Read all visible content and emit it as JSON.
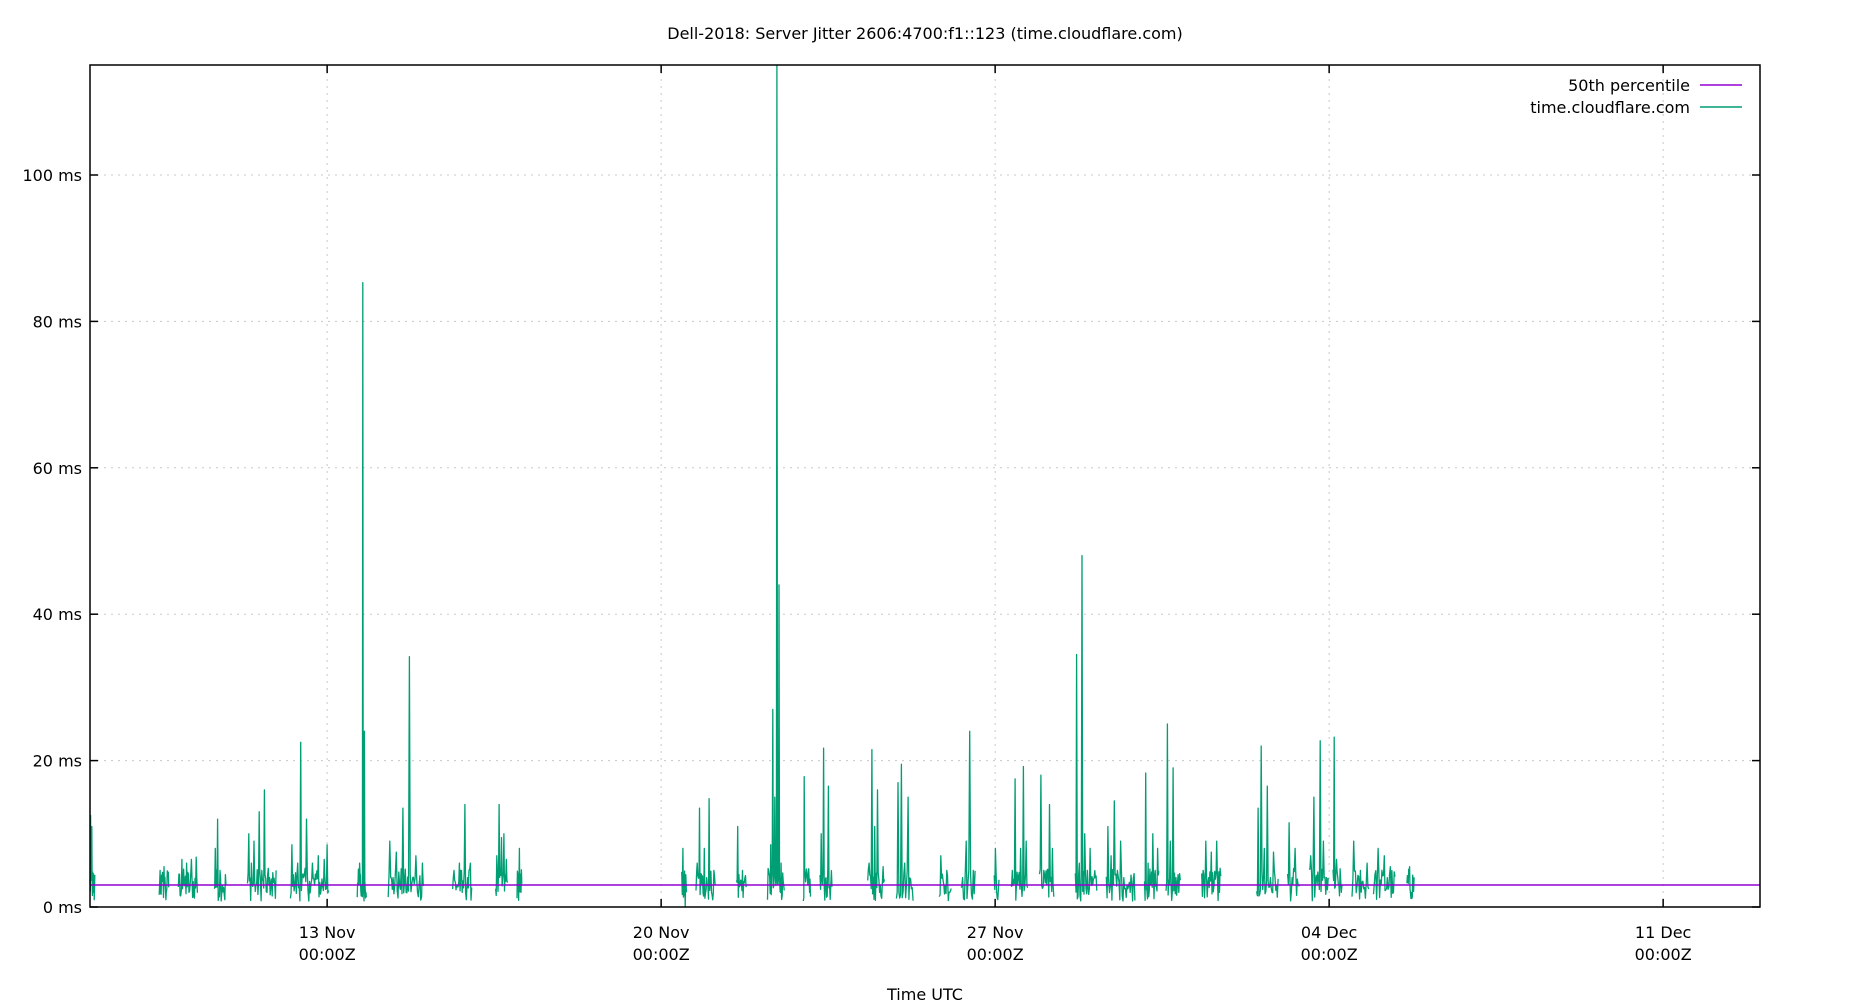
{
  "chart_data": {
    "type": "line",
    "title": "Dell-2018: Server Jitter 2606:4700:f1::123 (time.cloudflare.com)",
    "xlabel": "Time UTC",
    "ylabel": "",
    "ylim": [
      0,
      115
    ],
    "y_ticks": [
      {
        "value": 0,
        "label": "0 ms"
      },
      {
        "value": 20,
        "label": "20 ms"
      },
      {
        "value": 40,
        "label": "40 ms"
      },
      {
        "value": 60,
        "label": "60 ms"
      },
      {
        "value": 80,
        "label": "80 ms"
      },
      {
        "value": 100,
        "label": "100 ms"
      }
    ],
    "x_range_days": [
      0,
      29.7
    ],
    "x_origin": "08 Nov 00:00Z (approx.)",
    "x_ticks": [
      {
        "day": 4.97,
        "label_line1": "13 Nov",
        "label_line2": "00:00Z"
      },
      {
        "day": 11.97,
        "label_line1": "20 Nov",
        "label_line2": "00:00Z"
      },
      {
        "day": 18.97,
        "label_line1": "27 Nov",
        "label_line2": "00:00Z"
      },
      {
        "day": 25.97,
        "label_line1": "04 Dec",
        "label_line2": "00:00Z"
      },
      {
        "day": 32.97,
        "label_line1": "11 Dec",
        "label_line2": "00:00Z"
      }
    ],
    "grid": true,
    "legend_position": "top-right",
    "legend": [
      {
        "label": "50th percentile",
        "color": "#9400D3"
      },
      {
        "label": "time.cloudflare.com",
        "color": "#009E73"
      }
    ],
    "series": [
      {
        "name": "50th percentile",
        "color": "#9400D3",
        "constant_value_ms": 3.0
      },
      {
        "name": "time.cloudflare.com",
        "color": "#009E73",
        "description": "Jitter samples in bursts separated by gaps; baseline ~1-6 ms with spikes",
        "bursts": [
          {
            "start_day": 0.0,
            "end_day": 0.1,
            "peaks": [
              12.5,
              11.0,
              2.0,
              1.0
            ]
          },
          {
            "start_day": 1.45,
            "end_day": 1.65,
            "peaks": [
              5.0,
              3.5,
              5.5,
              1.0,
              4.8
            ]
          },
          {
            "start_day": 1.85,
            "end_day": 2.25,
            "peaks": [
              4.5,
              6.5,
              3.0,
              6.0,
              2.0,
              6.5,
              1.5,
              6.8
            ]
          },
          {
            "start_day": 2.6,
            "end_day": 2.85,
            "peaks": [
              8.0,
              12.0,
              5.0,
              3.0,
              1.0
            ]
          },
          {
            "start_day": 3.3,
            "end_day": 3.9,
            "peaks": [
              10.0,
              6.0,
              9.0,
              3.0,
              13.0,
              5.0,
              16.0,
              2.0,
              4.0,
              1.5,
              3.0
            ]
          },
          {
            "start_day": 4.2,
            "end_day": 5.0,
            "peaks": [
              8.5,
              3.0,
              6.0,
              22.5,
              4.0,
              12.0,
              3.5,
              6.0,
              4.5,
              7.0,
              2.5,
              6.5,
              8.5
            ]
          },
          {
            "start_day": 5.6,
            "end_day": 5.8,
            "peaks": [
              3.0,
              6.0,
              1.5,
              85.3,
              24.0,
              2.0
            ]
          },
          {
            "start_day": 6.25,
            "end_day": 7.0,
            "peaks": [
              9.0,
              4.0,
              7.5,
              3.0,
              13.5,
              2.0,
              34.2,
              4.0,
              7.0,
              3.0,
              6.0
            ]
          },
          {
            "start_day": 7.6,
            "end_day": 8.0,
            "peaks": [
              5.0,
              3.0,
              6.0,
              2.0,
              14.0,
              4.0,
              6.0
            ]
          },
          {
            "start_day": 8.5,
            "end_day": 8.75,
            "peaks": [
              7.0,
              14.0,
              9.5,
              10.0,
              6.5
            ]
          },
          {
            "start_day": 8.95,
            "end_day": 9.05,
            "peaks": [
              4.5,
              8.0,
              2.0
            ]
          },
          {
            "start_day": 12.4,
            "end_day": 12.5,
            "peaks": [
              8.0,
              0.0
            ]
          },
          {
            "start_day": 12.7,
            "end_day": 13.1,
            "peaks": [
              6.0,
              13.5,
              3.0,
              8.0,
              4.0,
              14.8,
              2.0,
              5.0
            ]
          },
          {
            "start_day": 13.55,
            "end_day": 13.75,
            "peaks": [
              11.0,
              3.0,
              5.0,
              4.0
            ]
          },
          {
            "start_day": 14.2,
            "end_day": 14.55,
            "peaks": [
              5.0,
              8.5,
              27.0,
              15.0,
              115.0,
              44.0,
              6.0,
              3.5
            ]
          },
          {
            "start_day": 14.95,
            "end_day": 15.1,
            "peaks": [
              17.8,
              4.0,
              3.0,
              2.0
            ]
          },
          {
            "start_day": 15.3,
            "end_day": 15.55,
            "peaks": [
              10.0,
              21.7,
              4.0,
              16.5,
              3.0
            ]
          },
          {
            "start_day": 16.3,
            "end_day": 16.65,
            "peaks": [
              6.0,
              21.5,
              11.0,
              16.0,
              3.0,
              5.5
            ]
          },
          {
            "start_day": 16.9,
            "end_day": 17.25,
            "peaks": [
              17.0,
              19.5,
              6.0,
              15.0,
              2.5
            ]
          },
          {
            "start_day": 17.8,
            "end_day": 18.05,
            "peaks": [
              7.0,
              3.0,
              5.0,
              2.0
            ]
          },
          {
            "start_day": 18.25,
            "end_day": 18.55,
            "peaks": [
              4.0,
              9.0,
              24.0,
              5.0
            ]
          },
          {
            "start_day": 18.95,
            "end_day": 19.05,
            "peaks": [
              8.0,
              1.0
            ]
          },
          {
            "start_day": 19.3,
            "end_day": 19.65,
            "peaks": [
              5.0,
              17.5,
              3.0,
              8.0,
              19.2,
              9.0
            ]
          },
          {
            "start_day": 19.9,
            "end_day": 20.2,
            "peaks": [
              18.0,
              5.0,
              3.0,
              14.0,
              8.0
            ]
          },
          {
            "start_day": 20.65,
            "end_day": 21.1,
            "peaks": [
              34.5,
              6.0,
              48.0,
              10.0,
              5.0,
              8.0,
              3.0,
              4.0
            ]
          },
          {
            "start_day": 21.3,
            "end_day": 21.9,
            "peaks": [
              11.0,
              7.0,
              14.5,
              5.0,
              9.0,
              4.0,
              3.0,
              2.0,
              4.0
            ]
          },
          {
            "start_day": 22.1,
            "end_day": 22.4,
            "peaks": [
              18.3,
              6.0,
              3.0,
              10.0,
              5.0,
              8.0
            ]
          },
          {
            "start_day": 22.55,
            "end_day": 22.85,
            "peaks": [
              25.0,
              9.0,
              19.0,
              4.0,
              2.0
            ]
          },
          {
            "start_day": 23.3,
            "end_day": 23.7,
            "peaks": [
              5.0,
              9.0,
              4.0,
              7.5,
              3.0,
              9.0,
              2.0
            ]
          },
          {
            "start_day": 24.45,
            "end_day": 24.9,
            "peaks": [
              13.5,
              22.0,
              8.0,
              16.5,
              4.0,
              7.5,
              3.0
            ]
          },
          {
            "start_day": 25.1,
            "end_day": 25.35,
            "peaks": [
              11.5,
              4.0,
              8.0,
              3.0
            ]
          },
          {
            "start_day": 25.55,
            "end_day": 25.95,
            "peaks": [
              7.0,
              15.0,
              3.0,
              22.7,
              9.0,
              4.0
            ]
          },
          {
            "start_day": 26.05,
            "end_day": 26.25,
            "peaks": [
              23.2,
              6.5,
              3.0,
              2.0
            ]
          },
          {
            "start_day": 26.45,
            "end_day": 26.8,
            "peaks": [
              9.0,
              3.0,
              5.0,
              2.5,
              6.0
            ]
          },
          {
            "start_day": 26.9,
            "end_day": 27.35,
            "peaks": [
              4.5,
              8.0,
              3.0,
              7.0,
              4.0,
              5.5,
              2.0
            ]
          },
          {
            "start_day": 27.6,
            "end_day": 27.75,
            "peaks": [
              4.0,
              5.5,
              2.0,
              3.5
            ]
          }
        ]
      }
    ]
  }
}
